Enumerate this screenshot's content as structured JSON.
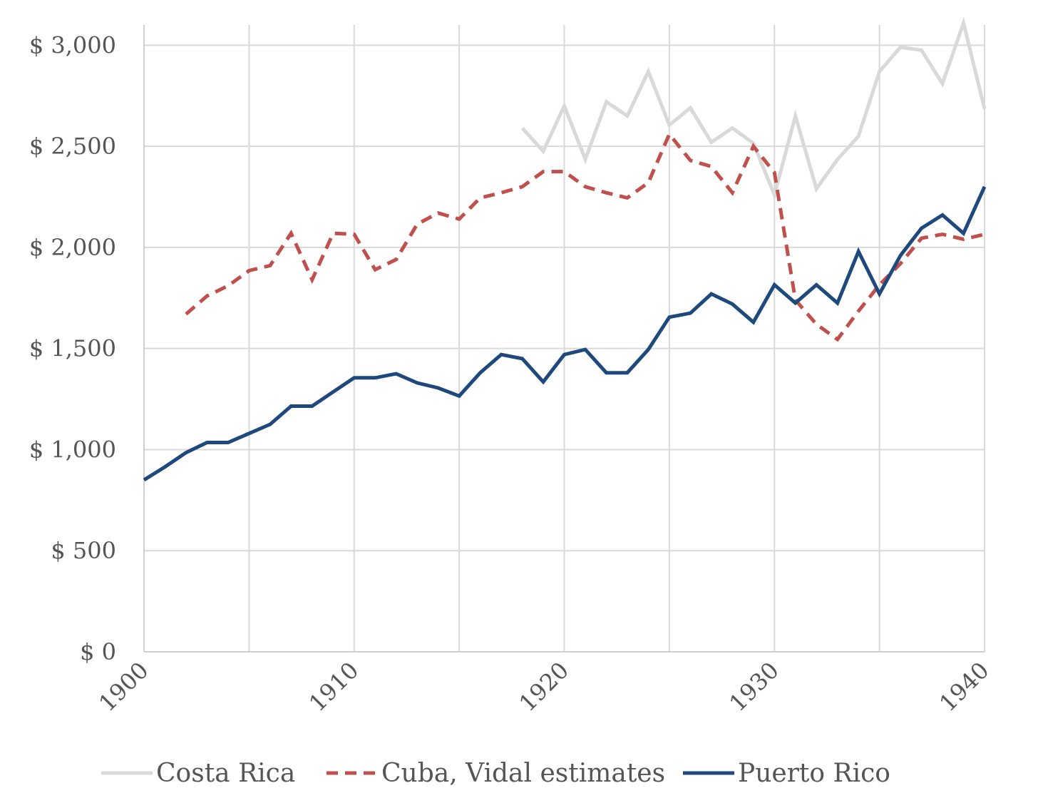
{
  "chart_data": {
    "type": "line",
    "title": "",
    "xlabel": "",
    "ylabel": "",
    "xlim": [
      1900,
      1940
    ],
    "ylim": [
      0,
      3100
    ],
    "y_ticks": [
      0,
      500,
      1000,
      1500,
      2000,
      2500,
      3000
    ],
    "y_tick_labels": [
      "$ 0",
      "$ 500",
      "$ 1,000",
      "$ 1,500",
      "$ 2,000",
      "$ 2,500",
      "$ 3,000"
    ],
    "x_ticks": [
      1900,
      1910,
      1920,
      1930,
      1940
    ],
    "x_tick_labels": [
      "1900",
      "1910",
      "1920",
      "1930",
      "1940"
    ],
    "grid": true,
    "legend_position": "bottom",
    "series": [
      {
        "name": "Costa Rica",
        "color": "#d9d9d9",
        "dash": "solid",
        "x": [
          1918,
          1919,
          1920,
          1921,
          1922,
          1923,
          1924,
          1925,
          1926,
          1927,
          1928,
          1929,
          1930,
          1931,
          1932,
          1933,
          1934,
          1935,
          1936,
          1937,
          1938,
          1939,
          1940
        ],
        "values": [
          2590,
          2475,
          2700,
          2435,
          2720,
          2650,
          2870,
          2605,
          2690,
          2520,
          2590,
          2515,
          2260,
          2650,
          2290,
          2435,
          2550,
          2870,
          2990,
          2975,
          2810,
          3110,
          2685
        ]
      },
      {
        "name": "Cuba, Vidal estimates",
        "color": "#c0504d",
        "dash": "dashed",
        "x": [
          1902,
          1903,
          1904,
          1905,
          1906,
          1907,
          1908,
          1909,
          1910,
          1911,
          1912,
          1913,
          1914,
          1915,
          1916,
          1917,
          1918,
          1919,
          1920,
          1921,
          1922,
          1923,
          1924,
          1925,
          1926,
          1927,
          1928,
          1929,
          1930,
          1931,
          1932,
          1933,
          1934,
          1935,
          1936,
          1937,
          1938,
          1939,
          1940
        ],
        "values": [
          1670,
          1760,
          1810,
          1885,
          1910,
          2070,
          1840,
          2070,
          2065,
          1890,
          1940,
          2115,
          2170,
          2140,
          2245,
          2270,
          2300,
          2375,
          2375,
          2300,
          2270,
          2245,
          2320,
          2560,
          2430,
          2400,
          2270,
          2500,
          2370,
          1740,
          1620,
          1545,
          1685,
          1815,
          1920,
          2045,
          2065,
          2040,
          2065
        ]
      },
      {
        "name": "Puerto Rico",
        "color": "#1f497d",
        "dash": "solid",
        "x": [
          1900,
          1901,
          1902,
          1903,
          1904,
          1905,
          1906,
          1907,
          1908,
          1909,
          1910,
          1911,
          1912,
          1913,
          1914,
          1915,
          1916,
          1917,
          1918,
          1919,
          1920,
          1921,
          1922,
          1923,
          1924,
          1925,
          1926,
          1927,
          1928,
          1929,
          1930,
          1931,
          1932,
          1933,
          1934,
          1935,
          1936,
          1937,
          1938,
          1939,
          1940
        ],
        "values": [
          850,
          915,
          985,
          1035,
          1035,
          1080,
          1125,
          1215,
          1215,
          1285,
          1355,
          1355,
          1375,
          1330,
          1305,
          1265,
          1380,
          1470,
          1450,
          1335,
          1470,
          1495,
          1380,
          1380,
          1495,
          1655,
          1675,
          1770,
          1720,
          1630,
          1815,
          1725,
          1815,
          1725,
          1980,
          1770,
          1960,
          2095,
          2160,
          2070,
          2300
        ]
      }
    ]
  }
}
